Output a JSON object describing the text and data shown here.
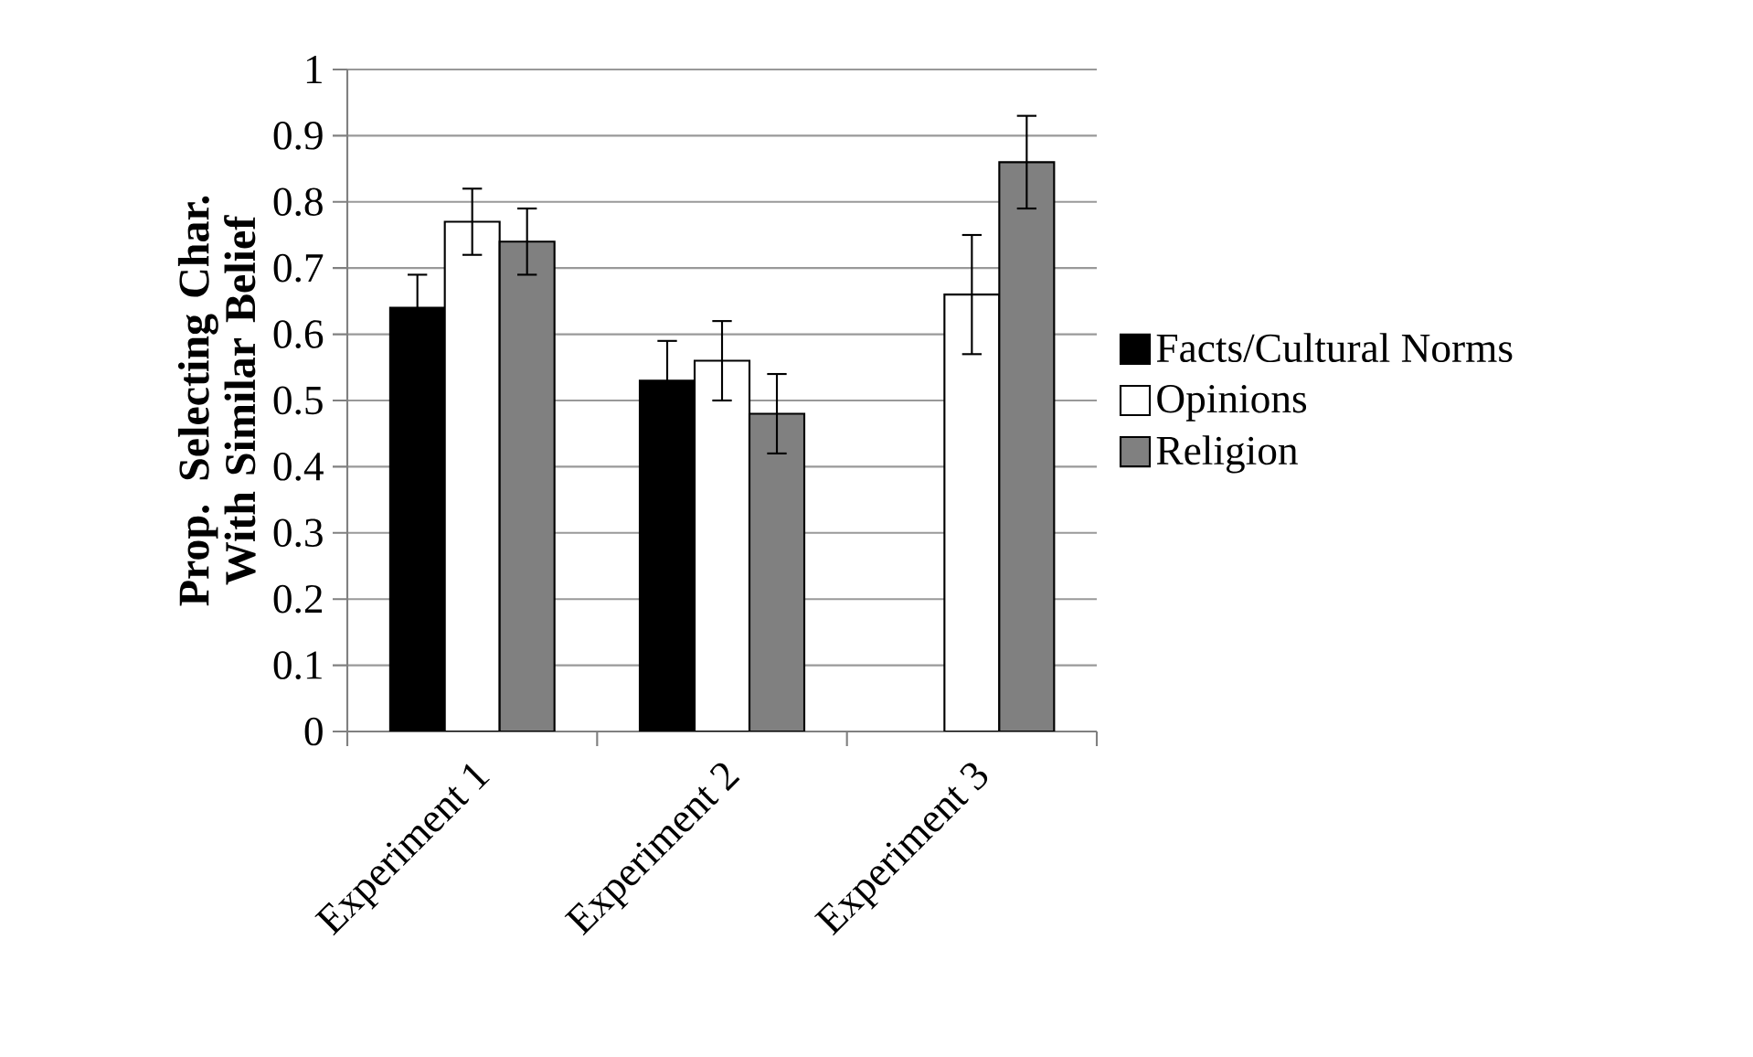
{
  "chart_data": {
    "type": "bar",
    "ylabel": "Prop. Selecting Char. With Similar Belief",
    "categories": [
      "Experiment 1",
      "Experiment 2",
      "Experiment 3"
    ],
    "series": [
      {
        "name": "Facts/Cultural Norms",
        "color": "#000000",
        "values": [
          0.64,
          0.53,
          null
        ],
        "errors": [
          0.05,
          0.06,
          null
        ]
      },
      {
        "name": "Opinions",
        "color": "#ffffff",
        "values": [
          0.77,
          0.56,
          0.66
        ],
        "errors": [
          0.05,
          0.06,
          0.09
        ]
      },
      {
        "name": "Religion",
        "color": "#808080",
        "values": [
          0.74,
          0.48,
          0.86
        ],
        "errors": [
          0.05,
          0.06,
          0.07
        ]
      }
    ],
    "ylim": [
      0,
      1
    ],
    "yticks": [
      0,
      0.1,
      0.2,
      0.3,
      0.4,
      0.5,
      0.6,
      0.7,
      0.8,
      0.9,
      1
    ],
    "grid": "y",
    "legend": "right"
  }
}
